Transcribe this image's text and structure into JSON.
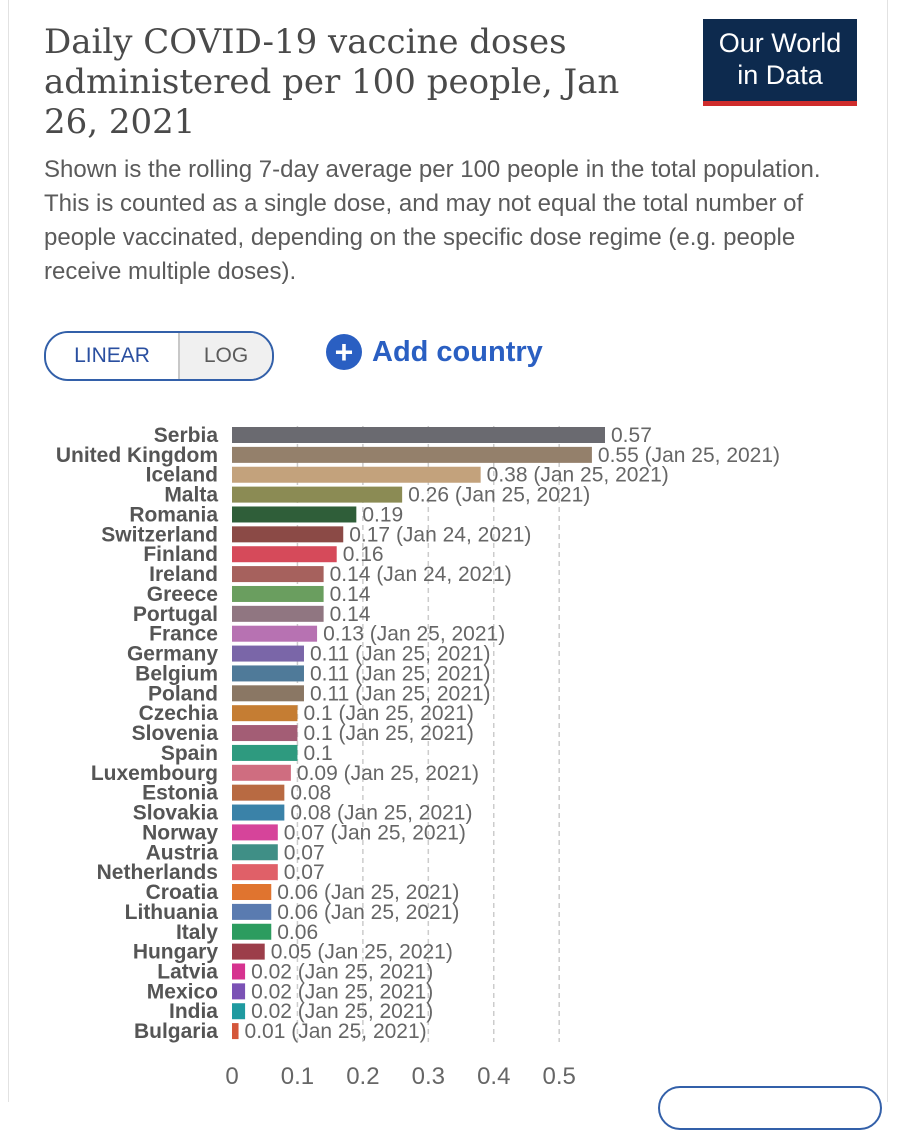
{
  "header": {
    "title": "Daily COVID-19 vaccine doses administered per 100 people, Jan 26, 2021",
    "subtitle": "Shown is the rolling 7-day average per 100 people in the total population. This is counted as a single dose, and may not equal the total number of people vaccinated, depending on the specific dose regime (e.g. people receive multiple doses)."
  },
  "logo": {
    "line1": "Our World",
    "line2": "in Data"
  },
  "controls": {
    "linear_label": "LINEAR",
    "log_label": "LOG",
    "add_country_label": "Add country"
  },
  "chart_data": {
    "type": "bar",
    "orientation": "horizontal",
    "title": "Daily COVID-19 vaccine doses administered per 100 people, Jan 26, 2021",
    "xlim": [
      0,
      0.57
    ],
    "xticks": [
      "0",
      "0.1",
      "0.2",
      "0.3",
      "0.4",
      "0.5"
    ],
    "xtick_values": [
      0,
      0.1,
      0.2,
      0.3,
      0.4,
      0.5
    ],
    "bars": [
      {
        "country": "Serbia",
        "value": 0.57,
        "label": "0.57",
        "color": "#6a6a70"
      },
      {
        "country": "United Kingdom",
        "value": 0.55,
        "label": "0.55 (Jan 25, 2021)",
        "color": "#94806b"
      },
      {
        "country": "Iceland",
        "value": 0.38,
        "label": "0.38 (Jan 25, 2021)",
        "color": "#c3a27c"
      },
      {
        "country": "Malta",
        "value": 0.26,
        "label": "0.26 (Jan 25, 2021)",
        "color": "#8b8b54"
      },
      {
        "country": "Romania",
        "value": 0.19,
        "label": "0.19",
        "color": "#2f5e39"
      },
      {
        "country": "Switzerland",
        "value": 0.17,
        "label": "0.17 (Jan 24, 2021)",
        "color": "#8b4a46"
      },
      {
        "country": "Finland",
        "value": 0.16,
        "label": "0.16",
        "color": "#d64a5a"
      },
      {
        "country": "Ireland",
        "value": 0.14,
        "label": "0.14 (Jan 24, 2021)",
        "color": "#a6615d"
      },
      {
        "country": "Greece",
        "value": 0.14,
        "label": "0.14",
        "color": "#6a9e5f"
      },
      {
        "country": "Portugal",
        "value": 0.14,
        "label": "0.14",
        "color": "#907681"
      },
      {
        "country": "France",
        "value": 0.13,
        "label": "0.13 (Jan 25, 2021)",
        "color": "#b772b2"
      },
      {
        "country": "Germany",
        "value": 0.11,
        "label": "0.11 (Jan 25, 2021)",
        "color": "#7a66a8"
      },
      {
        "country": "Belgium",
        "value": 0.11,
        "label": "0.11 (Jan 25, 2021)",
        "color": "#4f7a99"
      },
      {
        "country": "Poland",
        "value": 0.11,
        "label": "0.11 (Jan 25, 2021)",
        "color": "#8a7764"
      },
      {
        "country": "Czechia",
        "value": 0.1,
        "label": "0.1 (Jan 25, 2021)",
        "color": "#c57d33"
      },
      {
        "country": "Slovenia",
        "value": 0.1,
        "label": "0.1 (Jan 25, 2021)",
        "color": "#a35d75"
      },
      {
        "country": "Spain",
        "value": 0.1,
        "label": "0.1",
        "color": "#2e9a7f"
      },
      {
        "country": "Luxembourg",
        "value": 0.09,
        "label": "0.09 (Jan 25, 2021)",
        "color": "#cf6d80"
      },
      {
        "country": "Estonia",
        "value": 0.08,
        "label": "0.08",
        "color": "#b86a42"
      },
      {
        "country": "Slovakia",
        "value": 0.08,
        "label": "0.08 (Jan 25, 2021)",
        "color": "#3a82a8"
      },
      {
        "country": "Norway",
        "value": 0.07,
        "label": "0.07 (Jan 25, 2021)",
        "color": "#d6449a"
      },
      {
        "country": "Austria",
        "value": 0.07,
        "label": "0.07",
        "color": "#3f8f86"
      },
      {
        "country": "Netherlands",
        "value": 0.07,
        "label": "0.07",
        "color": "#e06068"
      },
      {
        "country": "Croatia",
        "value": 0.06,
        "label": "0.06 (Jan 25, 2021)",
        "color": "#e0742f"
      },
      {
        "country": "Lithuania",
        "value": 0.06,
        "label": "0.06 (Jan 25, 2021)",
        "color": "#5a7bb0"
      },
      {
        "country": "Italy",
        "value": 0.06,
        "label": "0.06",
        "color": "#2c9c5f"
      },
      {
        "country": "Hungary",
        "value": 0.05,
        "label": "0.05 (Jan 25, 2021)",
        "color": "#9c3e4a"
      },
      {
        "country": "Latvia",
        "value": 0.02,
        "label": "0.02 (Jan 25, 2021)",
        "color": "#d6338f"
      },
      {
        "country": "Mexico",
        "value": 0.02,
        "label": "0.02 (Jan 25, 2021)",
        "color": "#7b52b5"
      },
      {
        "country": "India",
        "value": 0.02,
        "label": "0.02 (Jan 25, 2021)",
        "color": "#1f9aa0"
      },
      {
        "country": "Bulgaria",
        "value": 0.01,
        "label": "0.01 (Jan 25, 2021)",
        "color": "#d4563a"
      }
    ]
  }
}
